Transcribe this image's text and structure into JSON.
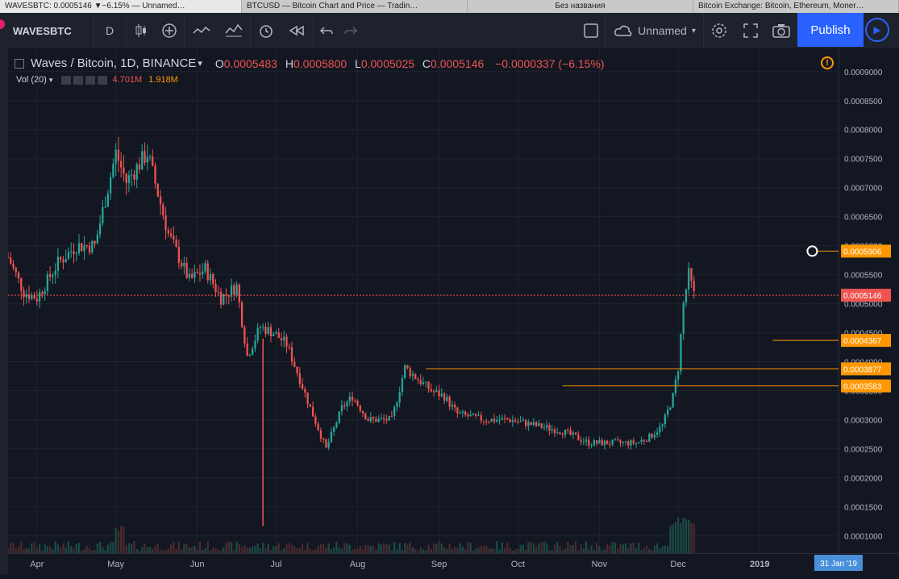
{
  "browser": {
    "tabs": [
      {
        "label": "WAVESBTC: 0.0005146 ▼−6.15% — Unnamed…"
      },
      {
        "label": "BTCUSD — Bitcoin Chart and Price — Tradin…"
      },
      {
        "label": "Без названия"
      },
      {
        "label": "Bitcoin Exchange: Bitcoin, Ethereum, Moner…"
      }
    ]
  },
  "toolbar": {
    "symbol": "WAVESBTC",
    "interval": "D",
    "layout_name": "Unnamed",
    "publish_label": "Publish"
  },
  "legend": {
    "title": "Waves / Bitcoin, 1D, BINANCE",
    "o_label": "O",
    "o_value": "0.0005483",
    "h_label": "H",
    "h_value": "0.0005800",
    "l_label": "L",
    "l_value": "0.0005025",
    "c_label": "C",
    "c_value": "0.0005146",
    "change": "−0.0000337 (−6.15%)"
  },
  "volume_legend": {
    "label": "Vol (20)",
    "value1": "4.701M",
    "value2": "1.918M"
  },
  "colors": {
    "up": "#26a69a",
    "down": "#ef5350",
    "horizontal_line": "#ff9800",
    "price_line": "#ef5350",
    "background": "#131722"
  },
  "chart_data": {
    "type": "candlestick",
    "ylim": [
      7e-05,
      0.00094
    ],
    "y_ticks": [
      "0.0001000",
      "0.0001500",
      "0.0002000",
      "0.0002500",
      "0.0003000",
      "0.0003500",
      "0.0004000",
      "0.0004500",
      "0.0005000",
      "0.0005500",
      "0.0006000",
      "0.0006500",
      "0.0007000",
      "0.0007500",
      "0.0008000",
      "0.0008500",
      "0.0009000"
    ],
    "x_ticks": [
      "Apr",
      "May",
      "Jun",
      "Jul",
      "Aug",
      "Sep",
      "Oct",
      "Nov",
      "Dec",
      "2019"
    ],
    "x_tick_days": [
      0,
      30,
      61,
      91,
      122,
      153,
      183,
      214,
      244,
      275
    ],
    "x_range_days": [
      -11,
      305
    ],
    "cursor_date_label": "31 Jan '19",
    "cursor_date_day": 305,
    "price_labels": [
      {
        "value": 0.0005906,
        "label": "0.0005906",
        "color": "#ff9800"
      },
      {
        "value": 0.0005146,
        "label": "0.0005146",
        "color": "#ef5350"
      },
      {
        "value": 0.0004367,
        "label": "0.0004367",
        "color": "#ff9800"
      },
      {
        "value": 0.0003877,
        "label": "0.0003877",
        "color": "#ff9800"
      },
      {
        "value": 0.0003583,
        "label": "0.0003583",
        "color": "#ff9800"
      }
    ],
    "horizontal_lines": [
      {
        "value": 0.0005906,
        "from_day": 295
      },
      {
        "value": 0.0004367,
        "from_day": 280
      },
      {
        "value": 0.0003877,
        "from_day": 148
      },
      {
        "value": 0.0003583,
        "from_day": 200
      }
    ],
    "last_price": 0.0005146,
    "close_path_days": [
      -11,
      -5,
      0,
      8,
      15,
      22,
      30,
      34,
      42,
      50,
      58,
      64,
      70,
      76,
      80,
      85,
      90,
      95,
      100,
      104,
      110,
      116,
      120,
      126,
      135,
      140,
      150,
      155,
      160,
      170,
      180,
      190,
      200,
      210,
      220,
      228,
      233,
      238,
      242,
      244,
      246,
      248,
      250
    ],
    "close_path_values": [
      0.00058,
      0.00052,
      0.00051,
      0.00057,
      0.0006,
      0.0006,
      0.00076,
      0.00071,
      0.00076,
      0.00062,
      0.00054,
      0.00056,
      0.00051,
      0.00053,
      0.00041,
      0.00046,
      0.00045,
      0.00043,
      0.00037,
      0.00032,
      0.00025,
      0.00032,
      0.00034,
      0.0003,
      0.0003,
      0.00039,
      0.00035,
      0.00034,
      0.00031,
      0.0003,
      0.0003,
      0.00029,
      0.00028,
      0.00026,
      0.00026,
      0.00026,
      0.00027,
      0.00029,
      0.00034,
      0.00039,
      0.0005,
      0.00055,
      0.000515
    ]
  }
}
